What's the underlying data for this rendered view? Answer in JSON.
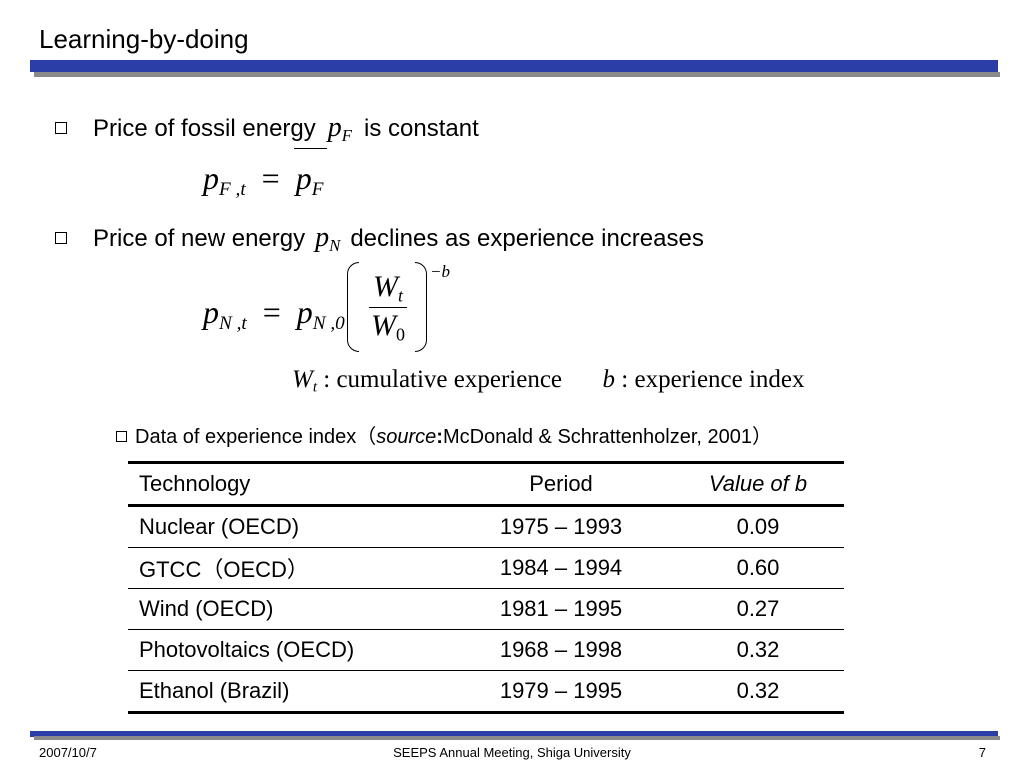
{
  "slide": {
    "title": "Learning-by-doing",
    "colors": {
      "accent_bar": "#2b3ea8",
      "bar_shadow": "#8a8a8a"
    }
  },
  "bullet1": {
    "text_before": "Price of fossil energy",
    "symbol": "p",
    "symbol_sub": "F",
    "text_after": "is constant"
  },
  "eq1": {
    "lhs": "p",
    "lhs_sub": "F ,t",
    "op": "=",
    "rhs": "p",
    "rhs_sub": "F"
  },
  "bullet2": {
    "text_before": "Price of new energy",
    "symbol": "p",
    "symbol_sub": "N",
    "text_after": "declines as experience increases"
  },
  "eq2": {
    "lhs": "p",
    "lhs_sub": "N ,t",
    "op": "=",
    "rhs": "p",
    "rhs_sub": "N ,0",
    "num": "W",
    "num_sub": "t",
    "den": "W",
    "den_sub": "0",
    "exponent": "−b"
  },
  "definitions": {
    "w_symbol": "W",
    "w_sub": "t",
    "w_colon": ":",
    "w_text": "cumulative experience",
    "b_symbol": "b",
    "b_colon": ":",
    "b_text": "experience index"
  },
  "sub_bullet": {
    "text": "Data of experience index（",
    "source_label": "source",
    "source_colon": ":",
    "source_text": " McDonald & Schrattenholzer, 2001）"
  },
  "table": {
    "headers": {
      "technology": "Technology",
      "period": "Period",
      "value": "Value of b"
    },
    "rows": [
      {
        "technology": "Nuclear (OECD)",
        "period": "1975 – 1993",
        "value": "0.09"
      },
      {
        "technology": "GTCC（OECD）",
        "period": "1984 – 1994",
        "value": "0.60"
      },
      {
        "technology": "Wind (OECD)",
        "period": "1981 – 1995",
        "value": "0.27"
      },
      {
        "technology": "Photovoltaics (OECD)",
        "period": "1968 – 1998",
        "value": "0.32"
      },
      {
        "technology": "Ethanol (Brazil)",
        "period": "1979 – 1995",
        "value": "0.32"
      }
    ]
  },
  "footer": {
    "date": "2007/10/7",
    "center": "SEEPS Annual Meeting, Shiga University",
    "page": "7"
  }
}
